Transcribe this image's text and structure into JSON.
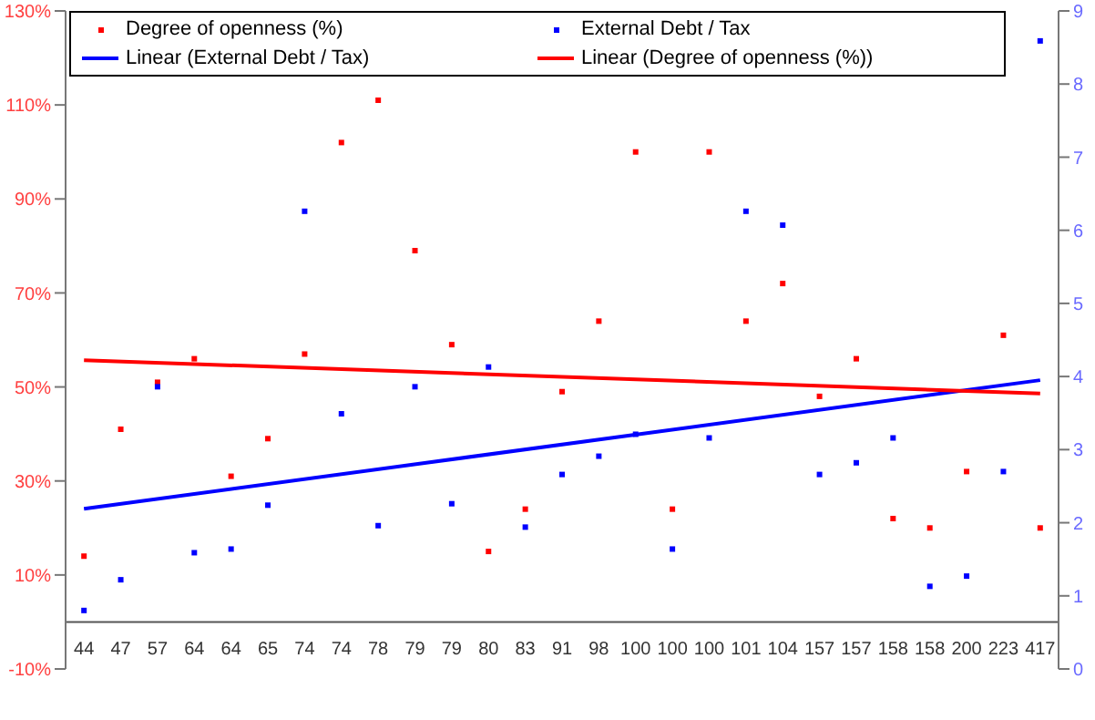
{
  "chart_data": {
    "type": "scatter",
    "categories": [
      "44",
      "47",
      "57",
      "64",
      "64",
      "65",
      "74",
      "74",
      "78",
      "79",
      "79",
      "80",
      "83",
      "91",
      "98",
      "100",
      "100",
      "100",
      "101",
      "104",
      "157",
      "157",
      "158",
      "158",
      "200",
      "223",
      "417"
    ],
    "series": [
      {
        "name": "Degree of openness (%)",
        "marker": "square",
        "color": "#ff0000",
        "values": [
          14,
          41,
          51,
          56,
          31,
          39,
          57,
          102,
          111,
          79,
          59,
          15,
          24,
          49,
          64,
          100,
          24,
          100,
          64,
          72,
          48,
          56,
          22,
          20,
          32,
          61,
          20
        ]
      },
      {
        "name": "External Debt / Tax",
        "marker": "square",
        "color": "#0000ff",
        "axis": "y2",
        "values": [
          0.8,
          1.22,
          3.86,
          1.59,
          1.64,
          2.24,
          6.26,
          3.49,
          1.96,
          3.86,
          2.26,
          4.13,
          1.94,
          2.66,
          2.91,
          3.21,
          1.64,
          3.16,
          6.26,
          6.07,
          2.66,
          2.82,
          3.16,
          1.13,
          1.27,
          2.7,
          8.59
        ]
      },
      {
        "name": "Linear (External Debt / Tax)",
        "type": "line",
        "marker": "none",
        "color": "#0000ff",
        "axis": "y2",
        "values": [
          2.19,
          null,
          null,
          null,
          null,
          null,
          null,
          null,
          null,
          null,
          null,
          null,
          null,
          null,
          null,
          null,
          null,
          null,
          null,
          null,
          null,
          null,
          null,
          null,
          null,
          null,
          3.95
        ]
      },
      {
        "name": "Linear (Degree of openness (%))",
        "type": "line",
        "marker": "none",
        "color": "#ff0000",
        "values": [
          55.7,
          null,
          null,
          null,
          null,
          null,
          null,
          null,
          null,
          null,
          null,
          null,
          null,
          null,
          null,
          null,
          null,
          null,
          null,
          null,
          null,
          null,
          null,
          null,
          null,
          null,
          48.6
        ]
      }
    ],
    "ylim": [
      -10,
      130
    ],
    "yticks": [
      {
        "value": -10,
        "label": "-10%"
      },
      {
        "value": 10,
        "label": "10%"
      },
      {
        "value": 30,
        "label": "30%"
      },
      {
        "value": 50,
        "label": "50%"
      },
      {
        "value": 70,
        "label": "70%"
      },
      {
        "value": 90,
        "label": "90%"
      },
      {
        "value": 110,
        "label": "110%"
      },
      {
        "value": 130,
        "label": "130%"
      }
    ],
    "y2lim": [
      0,
      9
    ],
    "y2ticks": [
      0,
      1,
      2,
      3,
      4,
      5,
      6,
      7,
      8,
      9
    ],
    "legend": "top",
    "grid": false,
    "line_style": "solid"
  }
}
